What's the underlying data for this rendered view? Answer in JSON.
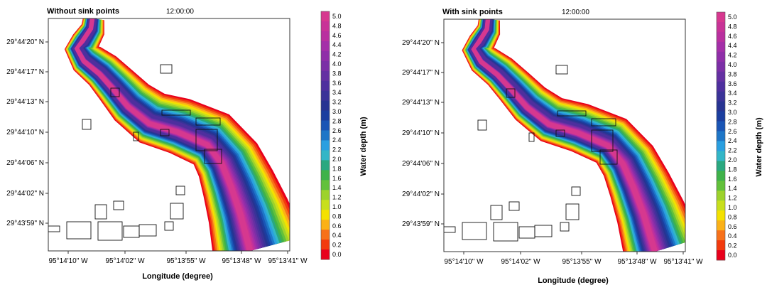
{
  "chart_data": [
    {
      "type": "heatmap",
      "title": "Without sink points",
      "time": "12:00:00",
      "xlabel": "Longitude (degree)",
      "x_ticks": [
        "95°14'10\" W",
        "95°14'02\" W",
        "95°13'55\" W",
        "95°13'48\" W",
        "95°13'41\" W"
      ],
      "y_ticks": [
        "29°44'20\" N",
        "29°44'17\" N",
        "29°44'13\" N",
        "29°44'10\" N",
        "29°44'06\" N",
        "29°44'02\" N",
        "29°43'59\" N"
      ],
      "colorbar_label": "Water depth (m)",
      "colorbar_ticks": [
        "5.0",
        "4.8",
        "4.6",
        "4.4",
        "4.2",
        "4.0",
        "3.8",
        "3.6",
        "3.4",
        "3.2",
        "3.0",
        "2.8",
        "2.6",
        "2.4",
        "2.2",
        "2.0",
        "1.8",
        "1.6",
        "1.4",
        "1.2",
        "1.0",
        "0.8",
        "0.6",
        "0.4",
        "0.2",
        "0.0"
      ],
      "value_range": [
        0,
        5.0
      ],
      "grid": false
    },
    {
      "type": "heatmap",
      "title": "With sink points",
      "time": "12:00:00",
      "xlabel": "Longitude (degree)",
      "x_ticks": [
        "95°14'10\" W",
        "95°14'02\" W",
        "95°13'55\" W",
        "95°13'48\" W",
        "95°13'41\" W"
      ],
      "y_ticks": [
        "29°44'20\" N",
        "29°44'17\" N",
        "29°44'13\" N",
        "29°44'10\" N",
        "29°44'06\" N",
        "29°44'02\" N",
        "29°43'59\" N"
      ],
      "colorbar_label": "Water depth (m)",
      "colorbar_ticks": [
        "5.0",
        "4.8",
        "4.6",
        "4.4",
        "4.2",
        "4.0",
        "3.8",
        "3.6",
        "3.4",
        "3.2",
        "3.0",
        "2.8",
        "2.6",
        "2.4",
        "2.2",
        "2.0",
        "1.8",
        "1.6",
        "1.4",
        "1.2",
        "1.0",
        "0.8",
        "0.6",
        "0.4",
        "0.2",
        "0.0"
      ],
      "value_range": [
        0,
        5.0
      ],
      "grid": false
    }
  ],
  "colormap": [
    "#e8001c",
    "#f23a0e",
    "#f7711a",
    "#fbb117",
    "#f4e100",
    "#c8df1c",
    "#9dd22c",
    "#62c13b",
    "#3fb24a",
    "#2aa880",
    "#33b6c7",
    "#2a9fe0",
    "#1e76c7",
    "#1a55b5",
    "#1b3e9f",
    "#273492",
    "#3a3398",
    "#4e2f9e",
    "#6430a2",
    "#7b2fa6",
    "#8f2ea8",
    "#a42fa8",
    "#b9309f",
    "#c83397",
    "#d6388f"
  ]
}
